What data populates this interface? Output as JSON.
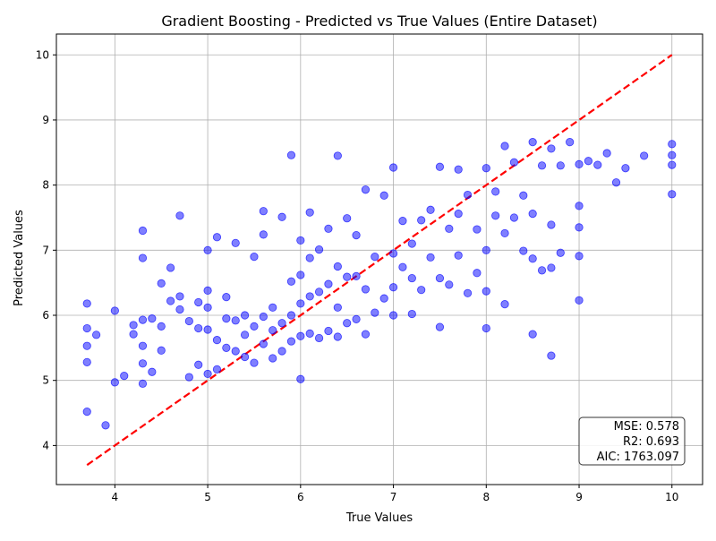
{
  "chart_data": {
    "type": "scatter",
    "title": "Gradient Boosting - Predicted vs True Values (Entire Dataset)",
    "xlabel": "True Values",
    "ylabel": "Predicted Values",
    "xlim": [
      3.37,
      10.33
    ],
    "ylim": [
      3.4,
      10.32
    ],
    "xticks": [
      4,
      5,
      6,
      7,
      8,
      9,
      10
    ],
    "yticks": [
      4,
      5,
      6,
      7,
      8,
      9,
      10
    ],
    "grid": true,
    "colors": {
      "points": "#0000ff",
      "ideal_line": "#ff0000",
      "grid": "#b0b0b0"
    },
    "reference_line": {
      "style": "dashed",
      "x": [
        3.7,
        10.0
      ],
      "y": [
        3.7,
        10.0
      ]
    },
    "stats_box": {
      "placement": "bottom-right",
      "lines": [
        "MSE: 0.578",
        "R2: 0.693",
        "AIC: 1763.097"
      ]
    },
    "series": [
      {
        "marker": "circle",
        "x": [
          3.7,
          3.7,
          3.7,
          3.7,
          3.7,
          3.8,
          3.9,
          4.0,
          4.0,
          4.1,
          4.2,
          4.2,
          4.3,
          4.3,
          4.3,
          4.3,
          4.3,
          4.3,
          4.4,
          4.4,
          4.5,
          4.5,
          4.5,
          4.6,
          4.6,
          4.7,
          4.7,
          4.7,
          4.8,
          4.8,
          4.9,
          4.9,
          4.9,
          5.0,
          5.0,
          5.0,
          5.0,
          5.0,
          5.1,
          5.1,
          5.1,
          5.2,
          5.2,
          5.2,
          5.3,
          5.3,
          5.3,
          5.4,
          5.4,
          5.4,
          5.5,
          5.5,
          5.5,
          5.6,
          5.6,
          5.6,
          5.6,
          5.7,
          5.7,
          5.7,
          5.8,
          5.8,
          5.8,
          5.9,
          5.9,
          5.9,
          5.9,
          6.0,
          6.0,
          6.0,
          6.0,
          6.0,
          6.1,
          6.1,
          6.1,
          6.1,
          6.2,
          6.2,
          6.2,
          6.3,
          6.3,
          6.3,
          6.4,
          6.4,
          6.4,
          6.4,
          6.5,
          6.5,
          6.5,
          6.6,
          6.6,
          6.6,
          6.7,
          6.7,
          6.7,
          6.8,
          6.8,
          6.9,
          6.9,
          7.0,
          7.0,
          7.0,
          7.0,
          7.1,
          7.1,
          7.2,
          7.2,
          7.2,
          7.3,
          7.3,
          7.4,
          7.4,
          7.5,
          7.5,
          7.5,
          7.6,
          7.6,
          7.7,
          7.7,
          7.7,
          7.8,
          7.8,
          7.9,
          7.9,
          8.0,
          8.0,
          8.0,
          8.0,
          8.1,
          8.1,
          8.2,
          8.2,
          8.2,
          8.3,
          8.3,
          8.4,
          8.4,
          8.5,
          8.5,
          8.5,
          8.5,
          8.6,
          8.6,
          8.7,
          8.7,
          8.7,
          8.7,
          8.8,
          8.8,
          8.9,
          9.0,
          9.0,
          9.0,
          9.0,
          9.0,
          9.1,
          9.2,
          9.3,
          9.4,
          9.5,
          9.7,
          10.0,
          10.0,
          10.0,
          10.0
        ],
        "y": [
          4.52,
          5.28,
          5.8,
          6.18,
          5.53,
          5.7,
          4.31,
          6.07,
          4.97,
          5.07,
          5.85,
          5.71,
          4.95,
          5.26,
          5.53,
          6.88,
          7.3,
          5.93,
          5.13,
          5.95,
          6.49,
          5.46,
          5.83,
          6.73,
          6.22,
          6.29,
          6.09,
          7.53,
          5.91,
          5.05,
          5.24,
          5.8,
          6.2,
          5.1,
          5.78,
          6.12,
          6.38,
          7.0,
          5.17,
          5.62,
          7.2,
          5.5,
          5.95,
          6.28,
          5.45,
          5.92,
          7.11,
          5.36,
          5.7,
          6.0,
          5.27,
          5.83,
          6.9,
          5.56,
          5.98,
          7.24,
          7.6,
          5.34,
          5.77,
          6.12,
          5.45,
          5.88,
          7.51,
          5.6,
          6.0,
          6.52,
          8.46,
          5.68,
          6.18,
          6.62,
          7.15,
          5.02,
          5.72,
          6.29,
          6.88,
          7.58,
          5.65,
          6.36,
          7.01,
          5.76,
          6.48,
          7.33,
          5.67,
          6.12,
          6.75,
          8.45,
          5.88,
          6.59,
          7.49,
          5.94,
          6.6,
          7.23,
          5.71,
          6.4,
          7.93,
          6.04,
          6.9,
          6.26,
          7.84,
          6.0,
          6.43,
          6.95,
          8.27,
          6.74,
          7.45,
          6.02,
          6.57,
          7.1,
          6.39,
          7.46,
          6.89,
          7.62,
          5.82,
          6.57,
          8.28,
          6.47,
          7.33,
          6.92,
          7.56,
          8.24,
          6.34,
          7.85,
          6.65,
          7.32,
          5.8,
          6.37,
          7.0,
          8.26,
          7.53,
          7.9,
          6.17,
          7.26,
          8.6,
          7.5,
          8.35,
          6.99,
          7.84,
          5.71,
          6.87,
          7.56,
          8.66,
          6.69,
          8.3,
          5.38,
          6.73,
          7.39,
          8.56,
          6.96,
          8.3,
          8.66,
          6.23,
          6.91,
          7.35,
          7.68,
          8.32,
          8.37,
          8.31,
          8.49,
          8.04,
          8.26,
          8.45,
          7.86,
          8.31,
          8.46,
          8.63
        ]
      }
    ]
  }
}
